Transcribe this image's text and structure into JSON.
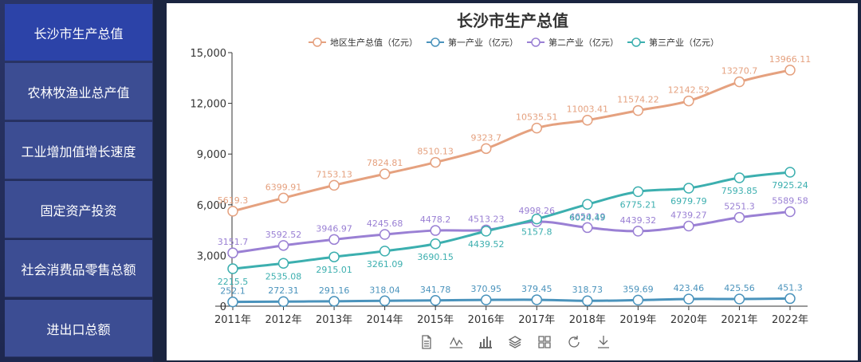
{
  "sidebar": {
    "items": [
      {
        "label": "长沙市生产总值",
        "active": true
      },
      {
        "label": "农林牧渔业总产值",
        "active": false
      },
      {
        "label": "工业增加值增长速度",
        "active": false
      },
      {
        "label": "固定资产投资",
        "active": false
      },
      {
        "label": "社会消费品零售总额",
        "active": false
      },
      {
        "label": "进出口总额",
        "active": false
      }
    ]
  },
  "toolbox": {
    "icons": [
      "data-view-icon",
      "line-chart-icon",
      "bar-chart-icon",
      "stack-icon",
      "tiled-icon",
      "restore-icon",
      "download-icon"
    ]
  },
  "chart_data": {
    "type": "line",
    "title": "长沙市生产总值",
    "categories": [
      "2011年",
      "2012年",
      "2013年",
      "2014年",
      "2015年",
      "2016年",
      "2017年",
      "2018年",
      "2019年",
      "2020年",
      "2021年",
      "2022年"
    ],
    "ylim": [
      0,
      15000
    ],
    "yticks": [
      "0",
      "3,000",
      "6,000",
      "9,000",
      "12,000",
      "15,000"
    ],
    "grid": false,
    "legend_position": "top-center",
    "series": [
      {
        "name": "地区生产总值（亿元）",
        "color": "#e5a17f",
        "values": [
          5619.3,
          6399.91,
          7153.13,
          7824.81,
          8510.13,
          9323.7,
          10535.51,
          11003.41,
          11574.22,
          12142.52,
          13270.7,
          13966.11
        ],
        "labels": [
          "5619.3",
          "6399.91",
          "7153.13",
          "7824.81",
          "8510.13",
          "9323.7",
          "10535.51",
          "11003.41",
          "11574.22",
          "12142.52",
          "13270.7",
          "13966.11"
        ]
      },
      {
        "name": "第一产业（亿元）",
        "color": "#4a93bc",
        "values": [
          252.1,
          272.31,
          291.16,
          318.04,
          341.78,
          370.95,
          379.45,
          318.73,
          359.69,
          423.46,
          425.56,
          451.3
        ],
        "labels": [
          "252.1",
          "272.31",
          "291.16",
          "318.04",
          "341.78",
          "370.95",
          "379.45",
          "318.73",
          "359.69",
          "423.46",
          "425.56",
          "451.3"
        ]
      },
      {
        "name": "第二产业（亿元）",
        "color": "#9a80d4",
        "values": [
          3151.7,
          3592.52,
          3946.97,
          4245.68,
          4478.2,
          4513.23,
          4998.26,
          4650.19,
          4439.32,
          4739.27,
          5251.3,
          5589.58
        ],
        "labels": [
          "3151.7",
          "3592.52",
          "3946.97",
          "4245.68",
          "4478.2",
          "4513.23",
          "4998.26",
          "4650.19",
          "4439.32",
          "4739.27",
          "5251.3",
          "5589.58"
        ]
      },
      {
        "name": "第三产业（亿元）",
        "color": "#3cafaf",
        "values": [
          2215.5,
          2535.08,
          2915.01,
          3261.09,
          3690.15,
          4439.52,
          5157.8,
          6024.49,
          6775.21,
          6979.79,
          7593.85,
          7925.24
        ],
        "labels": [
          "2215.5",
          "2535.08",
          "2915.01",
          "3261.09",
          "3690.15",
          "4439.52",
          "5157.8",
          "6024.49",
          "6775.21",
          "6979.79",
          "7593.85",
          "7925.24"
        ]
      }
    ]
  }
}
